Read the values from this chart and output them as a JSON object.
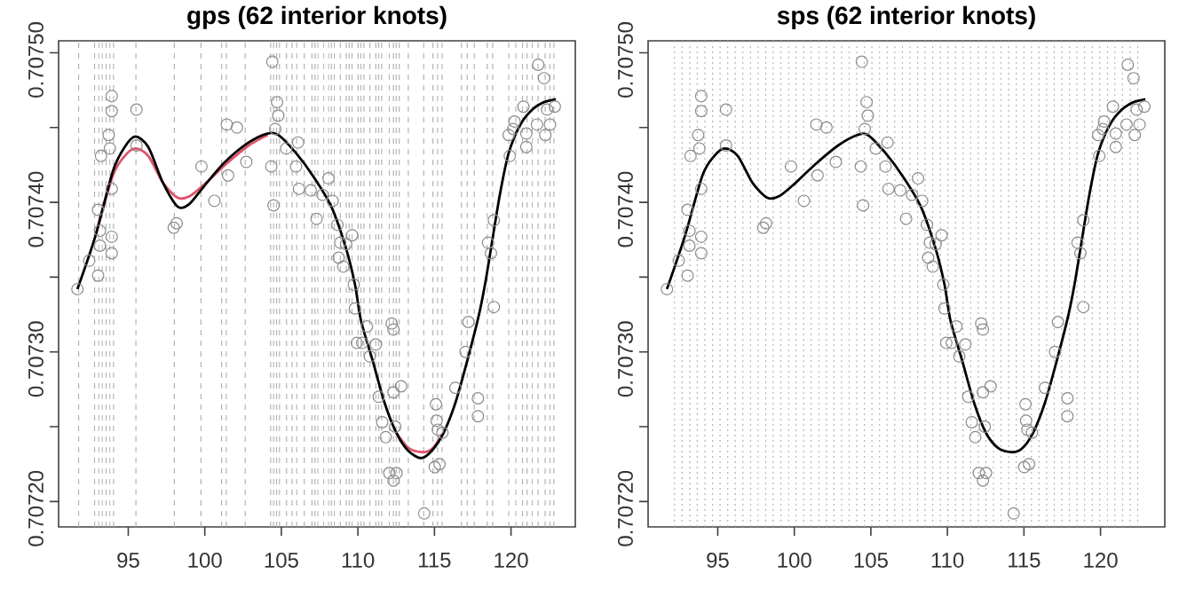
{
  "chart_data": [
    {
      "type": "scatter",
      "title": "gps (62 interior knots)",
      "xlim": [
        90.45,
        124.2
      ],
      "ylim": [
        0.707183,
        0.707508
      ],
      "xticks": [
        95,
        100,
        105,
        110,
        115,
        120
      ],
      "yticks": [
        {
          "value": 0.7072,
          "label": "0.70720"
        },
        {
          "value": 0.70725,
          "label": null
        },
        {
          "value": 0.7073,
          "label": "0.70730"
        },
        {
          "value": 0.70735,
          "label": null
        },
        {
          "value": 0.7074,
          "label": "0.70740"
        },
        {
          "value": 0.70745,
          "label": null
        },
        {
          "value": 0.7075,
          "label": "0.70750"
        }
      ],
      "series": [
        {
          "marker": "circle",
          "color": "#8c8c8c",
          "x": [
            91.68,
            92.45,
            93.03,
            93.15,
            93.15,
            93.03,
            93.22,
            93.8,
            93.72,
            93.92,
            93.92,
            93.92,
            93.92,
            93.92,
            95.54,
            95.54,
            97.97,
            98.16,
            99.78,
            100.63,
            101.44,
            101.52,
            102.1,
            102.71,
            104.41,
            104.34,
            104.49,
            104.72,
            104.8,
            104.6,
            105.32,
            106.09,
            105.96,
            106.15,
            106.92,
            107.3,
            108.08,
            107.69,
            108.35,
            108.66,
            108.85,
            109.23,
            109.62,
            108.74,
            109.04,
            118.5,
            118.88,
            118.69,
            119.85,
            119.92,
            120.15,
            120.23,
            120.81,
            121.0,
            121.0,
            121.78,
            122.16,
            121.7,
            122.24,
            122.55,
            122.86,
            122.36,
            109.73,
            109.81,
            109.93,
            110.28,
            110.59,
            110.78,
            111.17,
            111.36,
            111.59,
            111.82,
            112.21,
            112.32,
            112.32,
            112.82,
            112.05,
            112.52,
            112.32,
            112.44,
            114.33,
            115.1,
            115.14,
            115.22,
            115.52,
            115.02,
            115.33,
            116.37,
            117.03,
            117.22,
            117.84,
            117.84,
            118.88
          ],
          "values": [
            0.707342,
            0.707361,
            0.707351,
            0.707371,
            0.707381,
            0.707395,
            0.707431,
            0.707436,
            0.707445,
            0.707461,
            0.707471,
            0.707409,
            0.707377,
            0.707366,
            0.707462,
            0.707438,
            0.707383,
            0.707386,
            0.707424,
            0.707401,
            0.707452,
            0.707418,
            0.70745,
            0.707427,
            0.707494,
            0.707424,
            0.707398,
            0.707467,
            0.707458,
            0.707449,
            0.707436,
            0.70744,
            0.707424,
            0.707409,
            0.707408,
            0.707389,
            0.707416,
            0.707405,
            0.707401,
            0.707385,
            0.707373,
            0.707372,
            0.707378,
            0.707363,
            0.707357,
            0.707373,
            0.707388,
            0.707366,
            0.707445,
            0.707431,
            0.707449,
            0.707454,
            0.707464,
            0.707437,
            0.707446,
            0.707492,
            0.707483,
            0.707452,
            0.707445,
            0.707452,
            0.707464,
            0.707462,
            0.707345,
            0.707329,
            0.707306,
            0.707306,
            0.707317,
            0.707297,
            0.707305,
            0.70727,
            0.707253,
            0.707243,
            0.707319,
            0.707315,
            0.707273,
            0.707277,
            0.707219,
            0.707219,
            0.707214,
            0.70725,
            0.707192,
            0.707265,
            0.707254,
            0.707248,
            0.707246,
            0.707223,
            0.707225,
            0.707276,
            0.7073,
            0.70732,
            0.707269,
            0.707257,
            0.70733
          ]
        },
        {
          "type": "line",
          "color": "#df536b",
          "x": [
            92.84,
            94.0,
            94.77,
            95.46,
            96.31,
            97.27,
            98.24,
            99.0,
            99.97,
            101.32,
            102.86,
            104.1
          ],
          "values": [
            0.707377,
            0.707418,
            0.707431,
            0.707436,
            0.707431,
            0.707413,
            0.707403,
            0.707404,
            0.707412,
            0.707425,
            0.707438,
            0.707445
          ]
        },
        {
          "type": "line",
          "color": "#df536b",
          "x": [
            112.51,
            113.28,
            114.13,
            114.83,
            115.6
          ],
          "values": [
            0.707246,
            0.707236,
            0.707233,
            0.707235,
            0.707246
          ]
        },
        {
          "type": "line",
          "color": "#000000",
          "x": [
            91.68,
            92.84,
            94.0,
            94.77,
            95.46,
            96.31,
            97.27,
            98.24,
            99.0,
            99.97,
            101.32,
            102.86,
            104.1,
            104.8,
            105.95,
            107.11,
            108.27,
            109.23,
            109.81,
            110.2,
            110.97,
            111.74,
            112.51,
            113.28,
            114.13,
            114.83,
            115.6,
            116.37,
            117.14,
            117.91,
            118.3,
            118.69,
            119.27,
            119.85,
            120.62,
            121.39,
            122.16,
            122.93
          ],
          "values": [
            0.707342,
            0.707377,
            0.707421,
            0.707437,
            0.707444,
            0.707437,
            0.707413,
            0.707397,
            0.707399,
            0.707411,
            0.707427,
            0.70744,
            0.707446,
            0.707445,
            0.707433,
            0.707417,
            0.707397,
            0.707369,
            0.707345,
            0.707321,
            0.707294,
            0.707266,
            0.707246,
            0.707234,
            0.707229,
            0.707234,
            0.707246,
            0.707266,
            0.707294,
            0.707325,
            0.707345,
            0.707369,
            0.707405,
            0.707433,
            0.707452,
            0.707462,
            0.707467,
            0.707469
          ]
        }
      ],
      "ref_lines": [
        {
          "axis": "x",
          "value": 91.76,
          "color": "#b3b3b3",
          "line_style": "dashed"
        },
        {
          "axis": "x",
          "value": 92.8,
          "color": "#b3b3b3",
          "line_style": "dashed"
        },
        {
          "axis": "x",
          "value": 93.07,
          "color": "#b3b3b3",
          "line_style": "dashed"
        },
        {
          "axis": "x",
          "value": 93.3,
          "color": "#b3b3b3",
          "line_style": "dashed"
        },
        {
          "axis": "x",
          "value": 93.55,
          "color": "#b3b3b3",
          "line_style": "dashed"
        },
        {
          "axis": "x",
          "value": 93.8,
          "color": "#b3b3b3",
          "line_style": "dashed"
        },
        {
          "axis": "x",
          "value": 94.04,
          "color": "#b3b3b3",
          "line_style": "dashed"
        },
        {
          "axis": "x",
          "value": 95.5,
          "color": "#b3b3b3",
          "line_style": "dashed"
        },
        {
          "axis": "x",
          "value": 98.01,
          "color": "#b3b3b3",
          "line_style": "dashed"
        },
        {
          "axis": "x",
          "value": 99.75,
          "color": "#b3b3b3",
          "line_style": "dashed"
        },
        {
          "axis": "x",
          "value": 101.1,
          "color": "#b3b3b3",
          "line_style": "dashed"
        },
        {
          "axis": "x",
          "value": 101.4,
          "color": "#b3b3b3",
          "line_style": "dashed"
        },
        {
          "axis": "x",
          "value": 102.64,
          "color": "#b3b3b3",
          "line_style": "dashed"
        },
        {
          "axis": "x",
          "value": 104.3,
          "color": "#b3b3b3",
          "line_style": "dashed"
        },
        {
          "axis": "x",
          "value": 104.49,
          "color": "#b3b3b3",
          "line_style": "dashed"
        },
        {
          "axis": "x",
          "value": 104.69,
          "color": "#b3b3b3",
          "line_style": "dashed"
        },
        {
          "axis": "x",
          "value": 104.88,
          "color": "#b3b3b3",
          "line_style": "dashed"
        },
        {
          "axis": "x",
          "value": 105.34,
          "color": "#b3b3b3",
          "line_style": "dashed"
        },
        {
          "axis": "x",
          "value": 105.7,
          "color": "#b3b3b3",
          "line_style": "dashed"
        },
        {
          "axis": "x",
          "value": 106.0,
          "color": "#b3b3b3",
          "line_style": "dashed"
        },
        {
          "axis": "x",
          "value": 106.5,
          "color": "#b3b3b3",
          "line_style": "dashed"
        },
        {
          "axis": "x",
          "value": 107.0,
          "color": "#b3b3b3",
          "line_style": "dashed"
        },
        {
          "axis": "x",
          "value": 107.2,
          "color": "#b3b3b3",
          "line_style": "dashed"
        },
        {
          "axis": "x",
          "value": 107.38,
          "color": "#b3b3b3",
          "line_style": "dashed"
        },
        {
          "axis": "x",
          "value": 107.77,
          "color": "#b3b3b3",
          "line_style": "dashed"
        },
        {
          "axis": "x",
          "value": 108.08,
          "color": "#b3b3b3",
          "line_style": "dashed"
        },
        {
          "axis": "x",
          "value": 108.27,
          "color": "#b3b3b3",
          "line_style": "dashed"
        },
        {
          "axis": "x",
          "value": 108.46,
          "color": "#b3b3b3",
          "line_style": "dashed"
        },
        {
          "axis": "x",
          "value": 108.85,
          "color": "#b3b3b3",
          "line_style": "dashed"
        },
        {
          "axis": "x",
          "value": 109.24,
          "color": "#b3b3b3",
          "line_style": "dashed"
        },
        {
          "axis": "x",
          "value": 109.43,
          "color": "#b3b3b3",
          "line_style": "dashed"
        },
        {
          "axis": "x",
          "value": 109.62,
          "color": "#b3b3b3",
          "line_style": "dashed"
        },
        {
          "axis": "x",
          "value": 110.01,
          "color": "#b3b3b3",
          "line_style": "dashed"
        },
        {
          "axis": "x",
          "value": 110.2,
          "color": "#b3b3b3",
          "line_style": "dashed"
        },
        {
          "axis": "x",
          "value": 110.39,
          "color": "#b3b3b3",
          "line_style": "dashed"
        },
        {
          "axis": "x",
          "value": 110.78,
          "color": "#b3b3b3",
          "line_style": "dashed"
        },
        {
          "axis": "x",
          "value": 111.17,
          "color": "#b3b3b3",
          "line_style": "dashed"
        },
        {
          "axis": "x",
          "value": 111.36,
          "color": "#b3b3b3",
          "line_style": "dashed"
        },
        {
          "axis": "x",
          "value": 111.55,
          "color": "#b3b3b3",
          "line_style": "dashed"
        },
        {
          "axis": "x",
          "value": 112.05,
          "color": "#b3b3b3",
          "line_style": "dashed"
        },
        {
          "axis": "x",
          "value": 112.32,
          "color": "#b3b3b3",
          "line_style": "dashed"
        },
        {
          "axis": "x",
          "value": 112.5,
          "color": "#b3b3b3",
          "line_style": "dashed"
        },
        {
          "axis": "x",
          "value": 112.7,
          "color": "#b3b3b3",
          "line_style": "dashed"
        },
        {
          "axis": "x",
          "value": 113.29,
          "color": "#b3b3b3",
          "line_style": "dashed"
        },
        {
          "axis": "x",
          "value": 114.3,
          "color": "#b3b3b3",
          "line_style": "dashed"
        },
        {
          "axis": "x",
          "value": 114.9,
          "color": "#b3b3b3",
          "line_style": "dashed"
        },
        {
          "axis": "x",
          "value": 115.2,
          "color": "#b3b3b3",
          "line_style": "dashed"
        },
        {
          "axis": "x",
          "value": 115.5,
          "color": "#b3b3b3",
          "line_style": "dashed"
        },
        {
          "axis": "x",
          "value": 116.76,
          "color": "#b3b3b3",
          "line_style": "dashed"
        },
        {
          "axis": "x",
          "value": 117.14,
          "color": "#b3b3b3",
          "line_style": "dashed"
        },
        {
          "axis": "x",
          "value": 117.6,
          "color": "#b3b3b3",
          "line_style": "dashed"
        },
        {
          "axis": "x",
          "value": 118.45,
          "color": "#b3b3b3",
          "line_style": "dashed"
        },
        {
          "axis": "x",
          "value": 118.8,
          "color": "#b3b3b3",
          "line_style": "dashed"
        },
        {
          "axis": "x",
          "value": 119.85,
          "color": "#b3b3b3",
          "line_style": "dashed"
        },
        {
          "axis": "x",
          "value": 120.31,
          "color": "#b3b3b3",
          "line_style": "dashed"
        },
        {
          "axis": "x",
          "value": 120.75,
          "color": "#b3b3b3",
          "line_style": "dashed"
        },
        {
          "axis": "x",
          "value": 121.05,
          "color": "#b3b3b3",
          "line_style": "dashed"
        },
        {
          "axis": "x",
          "value": 121.39,
          "color": "#b3b3b3",
          "line_style": "dashed"
        },
        {
          "axis": "x",
          "value": 121.77,
          "color": "#b3b3b3",
          "line_style": "dashed"
        },
        {
          "axis": "x",
          "value": 122.23,
          "color": "#b3b3b3",
          "line_style": "dashed"
        },
        {
          "axis": "x",
          "value": 122.55,
          "color": "#b3b3b3",
          "line_style": "dashed"
        },
        {
          "axis": "x",
          "value": 122.8,
          "color": "#b3b3b3",
          "line_style": "dashed"
        }
      ]
    },
    {
      "type": "scatter",
      "title": "sps (62 interior knots)",
      "xlim": [
        90.45,
        124.2
      ],
      "ylim": [
        0.707183,
        0.707508
      ],
      "xticks": [
        95,
        100,
        105,
        110,
        115,
        120
      ],
      "yticks": [
        {
          "value": 0.7072,
          "label": "0.70720"
        },
        {
          "value": 0.70725,
          "label": null
        },
        {
          "value": 0.7073,
          "label": "0.70730"
        },
        {
          "value": 0.70735,
          "label": null
        },
        {
          "value": 0.7074,
          "label": "0.70740"
        },
        {
          "value": 0.70745,
          "label": null
        },
        {
          "value": 0.7075,
          "label": "0.70750"
        }
      ],
      "series": [
        {
          "marker": "circle",
          "color": "#8c8c8c",
          "x": [
            91.68,
            92.45,
            93.03,
            93.15,
            93.15,
            93.03,
            93.22,
            93.8,
            93.72,
            93.92,
            93.92,
            93.92,
            93.92,
            93.92,
            95.54,
            95.54,
            97.97,
            98.16,
            99.78,
            100.63,
            101.44,
            101.52,
            102.1,
            102.71,
            104.41,
            104.34,
            104.49,
            104.72,
            104.8,
            104.6,
            105.32,
            106.09,
            105.96,
            106.15,
            106.92,
            107.3,
            108.08,
            107.69,
            108.35,
            108.66,
            108.85,
            109.23,
            109.62,
            108.74,
            109.04,
            118.5,
            118.88,
            118.69,
            119.85,
            119.92,
            120.15,
            120.23,
            120.81,
            121.0,
            121.0,
            121.78,
            122.16,
            121.7,
            122.24,
            122.55,
            122.86,
            122.36,
            109.73,
            109.81,
            109.93,
            110.28,
            110.59,
            110.78,
            111.17,
            111.36,
            111.59,
            111.82,
            112.21,
            112.32,
            112.32,
            112.82,
            112.05,
            112.52,
            112.32,
            112.44,
            114.33,
            115.1,
            115.14,
            115.22,
            115.52,
            115.02,
            115.33,
            116.37,
            117.03,
            117.22,
            117.84,
            117.84,
            118.88
          ],
          "values": [
            0.707342,
            0.707361,
            0.707351,
            0.707371,
            0.707381,
            0.707395,
            0.707431,
            0.707436,
            0.707445,
            0.707461,
            0.707471,
            0.707409,
            0.707377,
            0.707366,
            0.707462,
            0.707438,
            0.707383,
            0.707386,
            0.707424,
            0.707401,
            0.707452,
            0.707418,
            0.70745,
            0.707427,
            0.707494,
            0.707424,
            0.707398,
            0.707467,
            0.707458,
            0.707449,
            0.707436,
            0.70744,
            0.707424,
            0.707409,
            0.707408,
            0.707389,
            0.707416,
            0.707405,
            0.707401,
            0.707385,
            0.707373,
            0.707372,
            0.707378,
            0.707363,
            0.707357,
            0.707373,
            0.707388,
            0.707366,
            0.707445,
            0.707431,
            0.707449,
            0.707454,
            0.707464,
            0.707437,
            0.707446,
            0.707492,
            0.707483,
            0.707452,
            0.707445,
            0.707452,
            0.707464,
            0.707462,
            0.707345,
            0.707329,
            0.707306,
            0.707306,
            0.707317,
            0.707297,
            0.707305,
            0.70727,
            0.707253,
            0.707243,
            0.707319,
            0.707315,
            0.707273,
            0.707277,
            0.707219,
            0.707219,
            0.707214,
            0.70725,
            0.707192,
            0.707265,
            0.707254,
            0.707248,
            0.707246,
            0.707223,
            0.707225,
            0.707276,
            0.7073,
            0.70732,
            0.707269,
            0.707257,
            0.70733
          ]
        },
        {
          "type": "line",
          "color": "#000000",
          "x": [
            91.68,
            92.84,
            94.0,
            94.77,
            95.46,
            96.31,
            97.27,
            98.24,
            99.0,
            99.97,
            101.32,
            102.86,
            104.1,
            104.8,
            105.95,
            107.11,
            108.27,
            109.23,
            109.81,
            110.2,
            110.97,
            111.74,
            112.51,
            113.28,
            114.13,
            114.83,
            115.6,
            116.37,
            117.14,
            117.91,
            118.3,
            118.69,
            119.27,
            119.85,
            120.62,
            121.39,
            122.16,
            122.93
          ],
          "values": [
            0.707342,
            0.707377,
            0.707418,
            0.707431,
            0.707436,
            0.707431,
            0.707413,
            0.707403,
            0.707404,
            0.707412,
            0.707425,
            0.707438,
            0.707445,
            0.707445,
            0.707433,
            0.707417,
            0.707397,
            0.707369,
            0.707345,
            0.707321,
            0.707294,
            0.707266,
            0.707246,
            0.707236,
            0.707233,
            0.707235,
            0.707246,
            0.707266,
            0.707294,
            0.707325,
            0.707345,
            0.707369,
            0.707405,
            0.707433,
            0.707452,
            0.707462,
            0.707467,
            0.707469
          ]
        }
      ],
      "ref_lines": [
        {
          "axis": "x",
          "value": 92.18,
          "color": "#b3b3b3",
          "line_style": "dotted"
        },
        {
          "axis": "x",
          "value": 92.67,
          "color": "#b3b3b3",
          "line_style": "dotted"
        },
        {
          "axis": "x",
          "value": 93.17,
          "color": "#b3b3b3",
          "line_style": "dotted"
        },
        {
          "axis": "x",
          "value": 93.66,
          "color": "#b3b3b3",
          "line_style": "dotted"
        },
        {
          "axis": "x",
          "value": 94.16,
          "color": "#b3b3b3",
          "line_style": "dotted"
        },
        {
          "axis": "x",
          "value": 94.66,
          "color": "#b3b3b3",
          "line_style": "dotted"
        },
        {
          "axis": "x",
          "value": 95.15,
          "color": "#b3b3b3",
          "line_style": "dotted"
        },
        {
          "axis": "x",
          "value": 95.65,
          "color": "#b3b3b3",
          "line_style": "dotted"
        },
        {
          "axis": "x",
          "value": 96.14,
          "color": "#b3b3b3",
          "line_style": "dotted"
        },
        {
          "axis": "x",
          "value": 96.64,
          "color": "#b3b3b3",
          "line_style": "dotted"
        },
        {
          "axis": "x",
          "value": 97.14,
          "color": "#b3b3b3",
          "line_style": "dotted"
        },
        {
          "axis": "x",
          "value": 97.63,
          "color": "#b3b3b3",
          "line_style": "dotted"
        },
        {
          "axis": "x",
          "value": 98.13,
          "color": "#b3b3b3",
          "line_style": "dotted"
        },
        {
          "axis": "x",
          "value": 98.62,
          "color": "#b3b3b3",
          "line_style": "dotted"
        },
        {
          "axis": "x",
          "value": 99.12,
          "color": "#b3b3b3",
          "line_style": "dotted"
        },
        {
          "axis": "x",
          "value": 99.62,
          "color": "#b3b3b3",
          "line_style": "dotted"
        },
        {
          "axis": "x",
          "value": 100.11,
          "color": "#b3b3b3",
          "line_style": "dotted"
        },
        {
          "axis": "x",
          "value": 100.61,
          "color": "#b3b3b3",
          "line_style": "dotted"
        },
        {
          "axis": "x",
          "value": 101.1,
          "color": "#b3b3b3",
          "line_style": "dotted"
        },
        {
          "axis": "x",
          "value": 101.6,
          "color": "#b3b3b3",
          "line_style": "dotted"
        },
        {
          "axis": "x",
          "value": 102.1,
          "color": "#b3b3b3",
          "line_style": "dotted"
        },
        {
          "axis": "x",
          "value": 102.59,
          "color": "#b3b3b3",
          "line_style": "dotted"
        },
        {
          "axis": "x",
          "value": 103.09,
          "color": "#b3b3b3",
          "line_style": "dotted"
        },
        {
          "axis": "x",
          "value": 103.58,
          "color": "#b3b3b3",
          "line_style": "dotted"
        },
        {
          "axis": "x",
          "value": 104.08,
          "color": "#b3b3b3",
          "line_style": "dotted"
        },
        {
          "axis": "x",
          "value": 104.58,
          "color": "#b3b3b3",
          "line_style": "dotted"
        },
        {
          "axis": "x",
          "value": 105.07,
          "color": "#b3b3b3",
          "line_style": "dotted"
        },
        {
          "axis": "x",
          "value": 105.57,
          "color": "#b3b3b3",
          "line_style": "dotted"
        },
        {
          "axis": "x",
          "value": 106.06,
          "color": "#b3b3b3",
          "line_style": "dotted"
        },
        {
          "axis": "x",
          "value": 106.56,
          "color": "#b3b3b3",
          "line_style": "dotted"
        },
        {
          "axis": "x",
          "value": 107.06,
          "color": "#b3b3b3",
          "line_style": "dotted"
        },
        {
          "axis": "x",
          "value": 107.55,
          "color": "#b3b3b3",
          "line_style": "dotted"
        },
        {
          "axis": "x",
          "value": 108.05,
          "color": "#b3b3b3",
          "line_style": "dotted"
        },
        {
          "axis": "x",
          "value": 108.54,
          "color": "#b3b3b3",
          "line_style": "dotted"
        },
        {
          "axis": "x",
          "value": 109.04,
          "color": "#b3b3b3",
          "line_style": "dotted"
        },
        {
          "axis": "x",
          "value": 109.54,
          "color": "#b3b3b3",
          "line_style": "dotted"
        },
        {
          "axis": "x",
          "value": 110.03,
          "color": "#b3b3b3",
          "line_style": "dotted"
        },
        {
          "axis": "x",
          "value": 110.53,
          "color": "#b3b3b3",
          "line_style": "dotted"
        },
        {
          "axis": "x",
          "value": 111.02,
          "color": "#b3b3b3",
          "line_style": "dotted"
        },
        {
          "axis": "x",
          "value": 111.52,
          "color": "#b3b3b3",
          "line_style": "dotted"
        },
        {
          "axis": "x",
          "value": 112.02,
          "color": "#b3b3b3",
          "line_style": "dotted"
        },
        {
          "axis": "x",
          "value": 112.51,
          "color": "#b3b3b3",
          "line_style": "dotted"
        },
        {
          "axis": "x",
          "value": 113.01,
          "color": "#b3b3b3",
          "line_style": "dotted"
        },
        {
          "axis": "x",
          "value": 113.5,
          "color": "#b3b3b3",
          "line_style": "dotted"
        },
        {
          "axis": "x",
          "value": 114.0,
          "color": "#b3b3b3",
          "line_style": "dotted"
        },
        {
          "axis": "x",
          "value": 114.5,
          "color": "#b3b3b3",
          "line_style": "dotted"
        },
        {
          "axis": "x",
          "value": 114.99,
          "color": "#b3b3b3",
          "line_style": "dotted"
        },
        {
          "axis": "x",
          "value": 115.49,
          "color": "#b3b3b3",
          "line_style": "dotted"
        },
        {
          "axis": "x",
          "value": 115.98,
          "color": "#b3b3b3",
          "line_style": "dotted"
        },
        {
          "axis": "x",
          "value": 116.48,
          "color": "#b3b3b3",
          "line_style": "dotted"
        },
        {
          "axis": "x",
          "value": 116.98,
          "color": "#b3b3b3",
          "line_style": "dotted"
        },
        {
          "axis": "x",
          "value": 117.47,
          "color": "#b3b3b3",
          "line_style": "dotted"
        },
        {
          "axis": "x",
          "value": 117.97,
          "color": "#b3b3b3",
          "line_style": "dotted"
        },
        {
          "axis": "x",
          "value": 118.46,
          "color": "#b3b3b3",
          "line_style": "dotted"
        },
        {
          "axis": "x",
          "value": 118.96,
          "color": "#b3b3b3",
          "line_style": "dotted"
        },
        {
          "axis": "x",
          "value": 119.46,
          "color": "#b3b3b3",
          "line_style": "dotted"
        },
        {
          "axis": "x",
          "value": 119.95,
          "color": "#b3b3b3",
          "line_style": "dotted"
        },
        {
          "axis": "x",
          "value": 120.45,
          "color": "#b3b3b3",
          "line_style": "dotted"
        },
        {
          "axis": "x",
          "value": 120.94,
          "color": "#b3b3b3",
          "line_style": "dotted"
        },
        {
          "axis": "x",
          "value": 121.44,
          "color": "#b3b3b3",
          "line_style": "dotted"
        },
        {
          "axis": "x",
          "value": 121.94,
          "color": "#b3b3b3",
          "line_style": "dotted"
        },
        {
          "axis": "x",
          "value": 122.43,
          "color": "#b3b3b3",
          "line_style": "dotted"
        }
      ]
    }
  ]
}
